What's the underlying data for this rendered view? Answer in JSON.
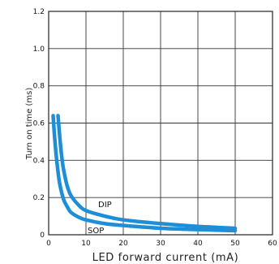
{
  "chart_data": {
    "type": "line",
    "title": "",
    "xlabel": "LED forward current (mA)",
    "ylabel": "Turn on time (ms)",
    "xlim": [
      0,
      60
    ],
    "ylim": [
      0,
      1.2
    ],
    "x_ticks": [
      "0",
      "10",
      "20",
      "30",
      "40",
      "50",
      "60"
    ],
    "y_ticks": [
      "0",
      "0.2",
      "0.4",
      "0.6",
      "0.8",
      "1.0",
      "1.2"
    ],
    "grid": true,
    "line_color": "#1e8fd6",
    "series": [
      {
        "name": "DIP",
        "x": [
          2.5,
          3.0,
          3.5,
          4.0,
          5.0,
          6.0,
          8.0,
          10.0,
          15.0,
          20.0,
          30.0,
          40.0,
          50.0
        ],
        "y": [
          0.64,
          0.52,
          0.42,
          0.35,
          0.26,
          0.21,
          0.16,
          0.13,
          0.1,
          0.08,
          0.06,
          0.045,
          0.035
        ]
      },
      {
        "name": "SOP",
        "x": [
          1.2,
          1.5,
          2.0,
          2.5,
          3.0,
          4.0,
          5.0,
          6.0,
          8.0,
          10.0,
          15.0,
          20.0,
          30.0,
          40.0,
          50.0
        ],
        "y": [
          0.64,
          0.55,
          0.43,
          0.34,
          0.27,
          0.19,
          0.15,
          0.12,
          0.095,
          0.08,
          0.06,
          0.05,
          0.035,
          0.028,
          0.022
        ]
      }
    ]
  }
}
